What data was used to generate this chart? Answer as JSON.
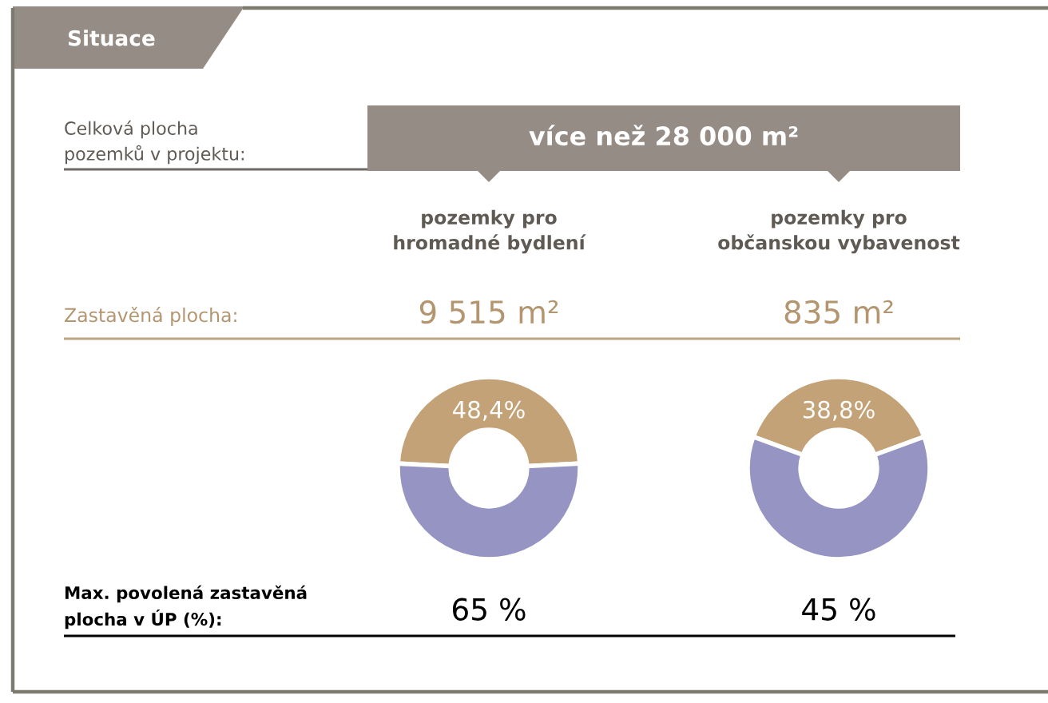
{
  "chart_data": [
    {
      "type": "other",
      "title": "Situace",
      "annotations": [
        "Celková plocha\npozemků v projektu:",
        "více než 28 000 m²",
        "Zastavěná plocha:",
        "Max. povolená zastavěná\nplocha v ÚP (%):"
      ]
    },
    {
      "type": "donut",
      "title": "pozemky pro\nhromadné bydlení",
      "categories": [
        null,
        null
      ],
      "values": [
        48.4,
        51.6
      ],
      "colors": [
        "#c4a277",
        "#9594c2"
      ],
      "value_labels": [
        "48,4%",
        null
      ],
      "annotations": [
        "9 515 m²",
        "65 %"
      ]
    },
    {
      "type": "donut",
      "title": "pozemky pro\nobčanskou vybavenost",
      "categories": [
        null,
        null
      ],
      "values": [
        38.8,
        61.2
      ],
      "colors": [
        "#c4a277",
        "#9594c2"
      ],
      "value_labels": [
        "38,8%",
        null
      ],
      "annotations": [
        "835 m²",
        "45 %"
      ]
    }
  ]
}
